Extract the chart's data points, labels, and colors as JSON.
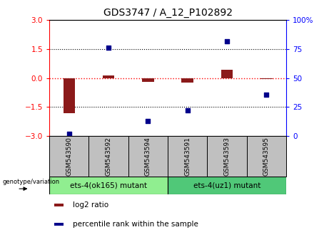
{
  "title": "GDS3747 / A_12_P102892",
  "samples": [
    "GSM543590",
    "GSM543592",
    "GSM543594",
    "GSM543591",
    "GSM543593",
    "GSM543595"
  ],
  "log2_ratios": [
    -1.8,
    0.12,
    -0.18,
    -0.22,
    0.45,
    -0.05
  ],
  "percentile_ranks": [
    2,
    76,
    13,
    22,
    82,
    36
  ],
  "groups": [
    {
      "label": "ets-4(ok165) mutant",
      "color": "#90EE90",
      "indices": [
        0,
        1,
        2
      ]
    },
    {
      "label": "ets-4(uz1) mutant",
      "color": "#50C878",
      "indices": [
        3,
        4,
        5
      ]
    }
  ],
  "bar_color": "#8B1A1A",
  "dot_color": "#00008B",
  "ylim_left": [
    -3,
    3
  ],
  "ylim_right": [
    0,
    100
  ],
  "yticks_left": [
    -3,
    -1.5,
    0,
    1.5,
    3
  ],
  "yticks_right": [
    0,
    25,
    50,
    75,
    100
  ],
  "legend_labels": [
    "log2 ratio",
    "percentile rank within the sample"
  ],
  "legend_colors": [
    "#8B1A1A",
    "#00008B"
  ],
  "sample_box_color": "#C0C0C0",
  "group1_color": "#90EE90",
  "group2_color": "#50C878"
}
